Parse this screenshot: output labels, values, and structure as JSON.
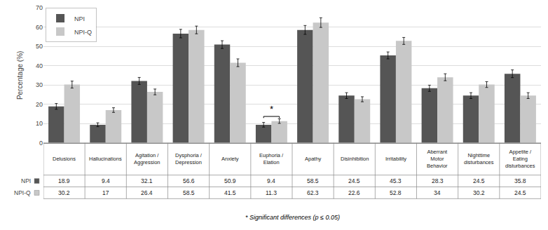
{
  "chart_data": {
    "type": "bar",
    "categories": [
      "Delusions",
      "Hallucinations",
      "Agitation /\nAggression",
      "Dysphoria /\nDepression",
      "Anxiety",
      "Euphoria /\nElation",
      "Apathy",
      "Disinhibition",
      "Irritability",
      "Aberrant\nMotor\nBehavior",
      "Nighttime\ndisturbances",
      "Appetite /\nEating\ndisturbances"
    ],
    "series": [
      {
        "name": "NPI",
        "color": "#555555",
        "values": [
          18.9,
          9.4,
          32.1,
          56.6,
          50.9,
          9.4,
          58.5,
          24.5,
          45.3,
          28.3,
          24.5,
          35.8
        ],
        "errors": [
          1.5,
          1.0,
          1.8,
          2.2,
          2.0,
          1.2,
          2.3,
          1.5,
          1.8,
          1.6,
          1.5,
          2.0
        ],
        "value_labels": [
          "18.9",
          "9.4",
          "32.1",
          "56.6",
          "50.9",
          "9.4",
          "58.5",
          "24.5",
          "45.3",
          "28.3",
          "24.5",
          "35.8"
        ]
      },
      {
        "name": "NPI-Q",
        "color": "#c8c8c8",
        "values": [
          30.2,
          17.0,
          26.4,
          58.5,
          41.5,
          11.3,
          62.3,
          22.6,
          52.8,
          34.0,
          30.2,
          24.5
        ],
        "errors": [
          1.8,
          1.2,
          1.5,
          2.0,
          2.0,
          1.2,
          2.5,
          1.3,
          1.8,
          1.8,
          1.5,
          1.5
        ],
        "value_labels": [
          "30.2",
          "17",
          "26.4",
          "58.5",
          "41.5",
          "11.3",
          "62.3",
          "22.6",
          "52.8",
          "34",
          "30.2",
          "24.5"
        ]
      }
    ],
    "ylabel": "Percentage (%)",
    "ylim": [
      0,
      70
    ],
    "yticks": [
      0,
      10,
      20,
      30,
      40,
      50,
      60,
      70
    ],
    "grid": true,
    "legend": "upper left",
    "annotations": [
      {
        "category": "Euphoria /\nElation",
        "text": "*"
      }
    ],
    "footnote": "* Significant differences (p ≤ 0.05)"
  }
}
